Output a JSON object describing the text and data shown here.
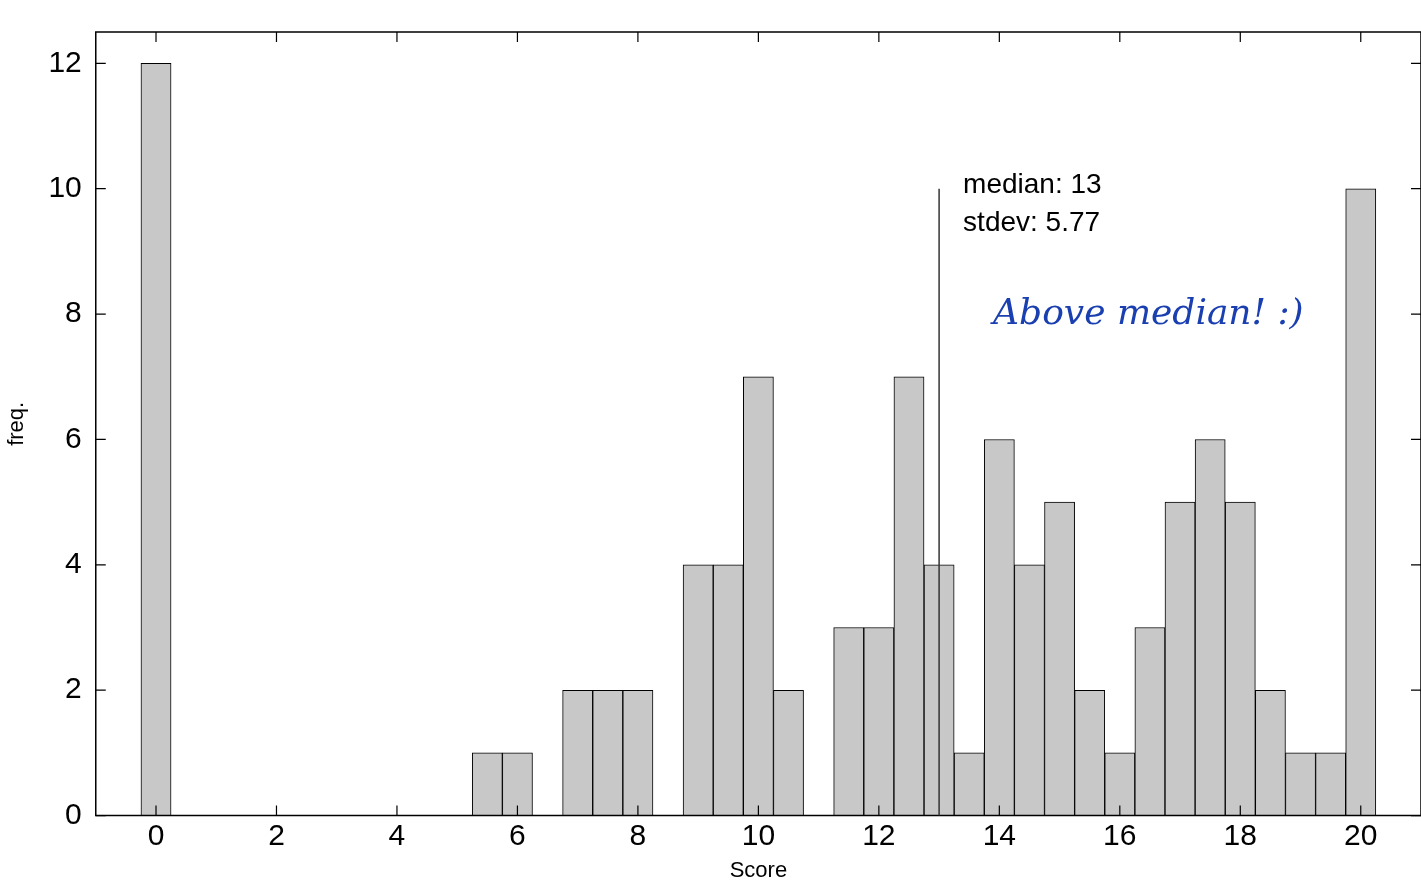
{
  "chart_data": {
    "type": "histogram",
    "xlabel": "Score",
    "ylabel": "freq.",
    "bins": [
      -0.25,
      0.25,
      0.75,
      1.25,
      1.75,
      2.25,
      2.75,
      3.25,
      3.75,
      4.25,
      4.75,
      5.25,
      5.75,
      6.25,
      6.75,
      7.25,
      7.75,
      8.25,
      8.75,
      9.25,
      9.75,
      10.25,
      10.75,
      11.25,
      11.75,
      12.25,
      12.75,
      13.25,
      13.75,
      14.25,
      14.75,
      15.25,
      15.75,
      16.25,
      16.75,
      17.25,
      17.75,
      18.25,
      18.75,
      19.25,
      19.75,
      20.25
    ],
    "values": [
      12,
      0,
      0,
      0,
      0,
      0,
      0,
      0,
      0,
      0,
      0,
      1,
      1,
      0,
      2,
      2,
      2,
      0,
      4,
      4,
      7,
      2,
      0,
      3,
      3,
      7,
      4,
      1,
      6,
      4,
      5,
      2,
      1,
      3,
      5,
      6,
      5,
      2,
      1,
      1,
      10
    ],
    "color": "#c8c8c8",
    "xlim": [
      -1,
      21
    ],
    "xticks": [
      0,
      2,
      4,
      6,
      8,
      10,
      12,
      14,
      16,
      18,
      20
    ],
    "ylim": [
      0,
      12.5
    ],
    "yticks": [
      0,
      2,
      4,
      6,
      8,
      10,
      12
    ],
    "grid": false,
    "legend": false,
    "ref_lines": [
      {
        "axis": "x",
        "value": 13,
        "color": "#333333"
      }
    ],
    "annotations": [
      "median: 13",
      "stdev: 5.77",
      "Above median! :)"
    ]
  }
}
